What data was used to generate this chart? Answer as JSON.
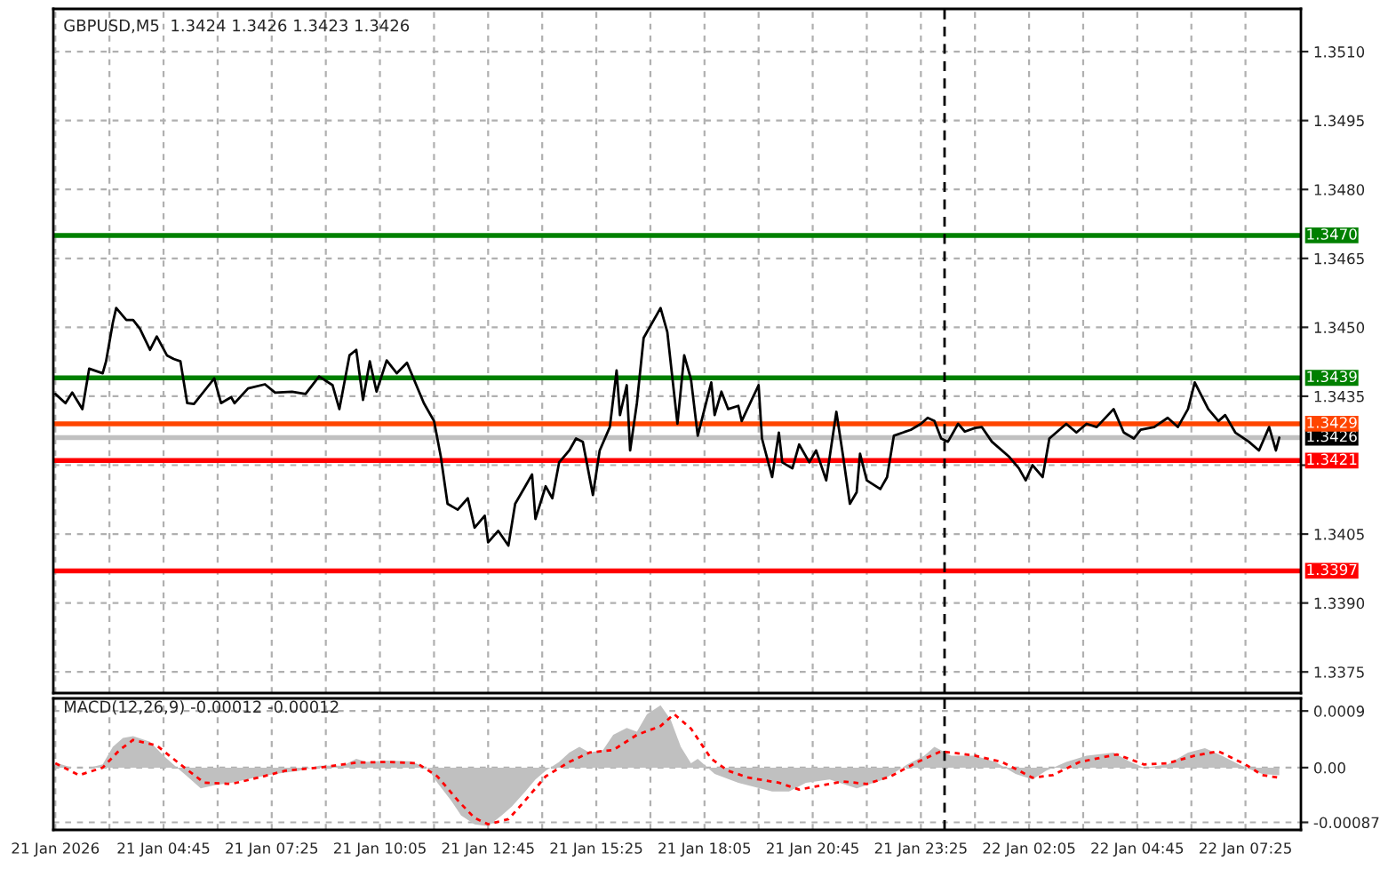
{
  "chart_data": [
    {
      "type": "line",
      "title": "GBPUSD,M5  1.3424 1.3426 1.3423 1.3426",
      "grid": true,
      "tick_labels": "y",
      "xlim": [
        "2026-01-21T02:02",
        "2026-01-22T08:47"
      ],
      "ylim": [
        1.33704,
        1.35193
      ],
      "xticks": [
        {
          "value": "2026-01-21T02:05",
          "label": null
        },
        {
          "value": "2026-01-21T03:25",
          "label": null
        },
        {
          "value": "2026-01-21T04:45",
          "label": null
        },
        {
          "value": "2026-01-21T06:05",
          "label": null
        },
        {
          "value": "2026-01-21T07:25",
          "label": null
        },
        {
          "value": "2026-01-21T08:45",
          "label": null
        },
        {
          "value": "2026-01-21T10:05",
          "label": null
        },
        {
          "value": "2026-01-21T11:25",
          "label": null
        },
        {
          "value": "2026-01-21T12:45",
          "label": null
        },
        {
          "value": "2026-01-21T14:05",
          "label": null
        },
        {
          "value": "2026-01-21T15:25",
          "label": null
        },
        {
          "value": "2026-01-21T16:45",
          "label": null
        },
        {
          "value": "2026-01-21T18:05",
          "label": null
        },
        {
          "value": "2026-01-21T19:25",
          "label": null
        },
        {
          "value": "2026-01-21T20:45",
          "label": null
        },
        {
          "value": "2026-01-21T22:05",
          "label": null
        },
        {
          "value": "2026-01-21T23:25",
          "label": null
        },
        {
          "value": "2026-01-22T00:45",
          "label": null
        },
        {
          "value": "2026-01-22T02:05",
          "label": null
        },
        {
          "value": "2026-01-22T03:25",
          "label": null
        },
        {
          "value": "2026-01-22T04:45",
          "label": null
        },
        {
          "value": "2026-01-22T06:05",
          "label": null
        },
        {
          "value": "2026-01-22T07:25",
          "label": null
        }
      ],
      "yticks": [
        {
          "value": 1.3375,
          "label": "1.3375"
        },
        {
          "value": 1.339,
          "label": "1.3390"
        },
        {
          "value": 1.3405,
          "label": "1.3405"
        },
        {
          "value": 1.342,
          "label": null
        },
        {
          "value": 1.3435,
          "label": "1.3435"
        },
        {
          "value": 1.345,
          "label": "1.3450"
        },
        {
          "value": 1.3465,
          "label": "1.3465"
        },
        {
          "value": 1.348,
          "label": "1.3480"
        },
        {
          "value": 1.3495,
          "label": "1.3495"
        },
        {
          "value": 1.351,
          "label": "1.3510"
        }
      ],
      "ref_lines": [
        {
          "axis": "y",
          "value": 1.347,
          "label": "1.3470",
          "color": "#008000",
          "line_style": "solid"
        },
        {
          "axis": "y",
          "value": 1.3439,
          "label": "1.3439",
          "color": "#008000",
          "line_style": "solid"
        },
        {
          "axis": "y",
          "value": 1.3429,
          "label": "1.3429",
          "color": "#ff4500",
          "line_style": "solid"
        },
        {
          "axis": "y",
          "value": 1.3426,
          "label": "1.3426",
          "color": "#c0c0c0",
          "line_style": "solid"
        },
        {
          "axis": "y",
          "value": 1.3421,
          "label": "1.3421",
          "color": "#ff0000",
          "line_style": "solid"
        },
        {
          "axis": "y",
          "value": 1.3397,
          "label": "1.3397",
          "color": "#ff0000",
          "line_style": "solid"
        },
        {
          "axis": "x",
          "value": "2026-01-22T00:00",
          "color": "#000000",
          "line_style": "dashed"
        }
      ],
      "series": [
        {
          "color": "#000000",
          "line_style": "solid",
          "x": [
            "2026-01-21T02:05",
            "2026-01-21T02:20",
            "2026-01-21T02:30",
            "2026-01-21T02:45",
            "2026-01-21T02:55",
            "2026-01-21T03:15",
            "2026-01-21T03:20",
            "2026-01-21T03:30",
            "2026-01-21T03:35",
            "2026-01-21T03:50",
            "2026-01-21T04:00",
            "2026-01-21T04:10",
            "2026-01-21T04:25",
            "2026-01-21T04:35",
            "2026-01-21T04:50",
            "2026-01-21T05:00",
            "2026-01-21T05:10",
            "2026-01-21T05:20",
            "2026-01-21T05:30",
            "2026-01-21T05:45",
            "2026-01-21T06:00",
            "2026-01-21T06:10",
            "2026-01-21T06:25",
            "2026-01-21T06:30",
            "2026-01-21T06:50",
            "2026-01-21T07:15",
            "2026-01-21T07:30",
            "2026-01-21T07:55",
            "2026-01-21T08:15",
            "2026-01-21T08:35",
            "2026-01-21T08:55",
            "2026-01-21T09:05",
            "2026-01-21T09:20",
            "2026-01-21T09:30",
            "2026-01-21T09:40",
            "2026-01-21T09:50",
            "2026-01-21T10:00",
            "2026-01-21T10:15",
            "2026-01-21T10:30",
            "2026-01-21T10:45",
            "2026-01-21T11:10",
            "2026-01-21T11:25",
            "2026-01-21T11:35",
            "2026-01-21T11:45",
            "2026-01-21T12:00",
            "2026-01-21T12:15",
            "2026-01-21T12:25",
            "2026-01-21T12:40",
            "2026-01-21T12:45",
            "2026-01-21T13:00",
            "2026-01-21T13:15",
            "2026-01-21T13:25",
            "2026-01-21T13:40",
            "2026-01-21T13:50",
            "2026-01-21T13:55",
            "2026-01-21T14:10",
            "2026-01-21T14:20",
            "2026-01-21T14:30",
            "2026-01-21T14:45",
            "2026-01-21T14:55",
            "2026-01-21T15:05",
            "2026-01-21T15:20",
            "2026-01-21T15:30",
            "2026-01-21T15:45",
            "2026-01-21T15:55",
            "2026-01-21T16:00",
            "2026-01-21T16:10",
            "2026-01-21T16:15",
            "2026-01-21T16:25",
            "2026-01-21T16:35",
            "2026-01-21T16:50",
            "2026-01-21T17:00",
            "2026-01-21T17:10",
            "2026-01-21T17:25",
            "2026-01-21T17:35",
            "2026-01-21T17:45",
            "2026-01-21T17:55",
            "2026-01-21T18:15",
            "2026-01-21T18:20",
            "2026-01-21T18:30",
            "2026-01-21T18:40",
            "2026-01-21T18:55",
            "2026-01-21T19:00",
            "2026-01-21T19:25",
            "2026-01-21T19:30",
            "2026-01-21T19:45",
            "2026-01-21T19:55",
            "2026-01-21T20:00",
            "2026-01-21T20:15",
            "2026-01-21T20:25",
            "2026-01-21T20:40",
            "2026-01-21T20:50",
            "2026-01-21T21:05",
            "2026-01-21T21:20",
            "2026-01-21T21:30",
            "2026-01-21T21:40",
            "2026-01-21T21:50",
            "2026-01-21T21:55",
            "2026-01-21T22:05",
            "2026-01-21T22:25",
            "2026-01-21T22:35",
            "2026-01-21T22:45",
            "2026-01-21T23:10",
            "2026-01-21T23:25",
            "2026-01-21T23:35",
            "2026-01-21T23:45",
            "2026-01-21T23:55",
            "2026-01-22T00:05",
            "2026-01-22T00:20",
            "2026-01-22T00:30",
            "2026-01-22T00:45",
            "2026-01-22T00:55",
            "2026-01-22T01:10",
            "2026-01-22T01:35",
            "2026-01-22T01:50",
            "2026-01-22T02:00",
            "2026-01-22T02:10",
            "2026-01-22T02:25",
            "2026-01-22T02:35",
            "2026-01-22T03:00",
            "2026-01-22T03:15",
            "2026-01-22T03:30",
            "2026-01-22T03:45",
            "2026-01-22T04:10",
            "2026-01-22T04:25",
            "2026-01-22T04:40",
            "2026-01-22T04:50",
            "2026-01-22T05:10",
            "2026-01-22T05:30",
            "2026-01-22T05:45",
            "2026-01-22T06:00",
            "2026-01-22T06:10",
            "2026-01-22T06:30",
            "2026-01-22T06:45",
            "2026-01-22T06:55",
            "2026-01-22T07:10",
            "2026-01-22T07:30",
            "2026-01-22T07:45",
            "2026-01-22T08:00",
            "2026-01-22T08:10",
            "2026-01-22T08:15"
          ],
          "values": [
            1.34355,
            1.34335,
            1.34358,
            1.34322,
            1.3441,
            1.344,
            1.34426,
            1.3451,
            1.34542,
            1.34516,
            1.34516,
            1.34497,
            1.34451,
            1.3448,
            1.34439,
            1.34431,
            1.34426,
            1.34335,
            1.34333,
            1.34361,
            1.34389,
            1.34335,
            1.34348,
            1.34335,
            1.34367,
            1.34376,
            1.34358,
            1.3436,
            1.34355,
            1.34393,
            1.34374,
            1.34322,
            1.34439,
            1.34451,
            1.34342,
            1.34426,
            1.3436,
            1.34428,
            1.344,
            1.34423,
            1.34335,
            1.34296,
            1.34219,
            1.34116,
            1.34103,
            1.34128,
            1.34064,
            1.3409,
            1.34032,
            1.34057,
            1.34025,
            1.34116,
            1.34154,
            1.3418,
            1.34083,
            1.34154,
            1.34128,
            1.34206,
            1.34232,
            1.34258,
            1.34251,
            1.34135,
            1.34232,
            1.34283,
            1.34406,
            1.34309,
            1.34374,
            1.34232,
            1.34335,
            1.34477,
            1.34516,
            1.34542,
            1.3449,
            1.3429,
            1.34439,
            1.34387,
            1.34264,
            1.3438,
            1.34309,
            1.3436,
            1.34322,
            1.34329,
            1.34296,
            1.34374,
            1.34258,
            1.34174,
            1.34271,
            1.34206,
            1.34193,
            1.34245,
            1.34206,
            1.34232,
            1.34167,
            1.34316,
            1.34219,
            1.34116,
            1.34141,
            1.34225,
            1.34167,
            1.34148,
            1.34174,
            1.34264,
            1.34277,
            1.3429,
            1.34303,
            1.34296,
            1.34258,
            1.34251,
            1.3429,
            1.34273,
            1.34281,
            1.34283,
            1.34251,
            1.34219,
            1.34193,
            1.34167,
            1.342,
            1.34174,
            1.34258,
            1.3429,
            1.34271,
            1.3429,
            1.34283,
            1.34322,
            1.34271,
            1.34258,
            1.34277,
            1.34283,
            1.34303,
            1.34283,
            1.34322,
            1.3438,
            1.34322,
            1.34296,
            1.34309,
            1.34271,
            1.34251,
            1.34232,
            1.34283,
            1.34232,
            1.3426
          ]
        }
      ]
    },
    {
      "type": "area",
      "title": "MACD(12,26,9) -0.00012 -0.00012",
      "grid": true,
      "xlim": [
        "2026-01-21T02:02",
        "2026-01-22T08:47"
      ],
      "ylim": [
        -0.00099,
        0.0011
      ],
      "xticks": [
        {
          "value": "2026-01-21T02:05",
          "label": "21 Jan 2026"
        },
        {
          "value": "2026-01-21T03:25",
          "label": null
        },
        {
          "value": "2026-01-21T04:45",
          "label": "21 Jan 04:45"
        },
        {
          "value": "2026-01-21T06:05",
          "label": null
        },
        {
          "value": "2026-01-21T07:25",
          "label": "21 Jan 07:25"
        },
        {
          "value": "2026-01-21T08:45",
          "label": null
        },
        {
          "value": "2026-01-21T10:05",
          "label": "21 Jan 10:05"
        },
        {
          "value": "2026-01-21T11:25",
          "label": null
        },
        {
          "value": "2026-01-21T12:45",
          "label": "21 Jan 12:45"
        },
        {
          "value": "2026-01-21T14:05",
          "label": null
        },
        {
          "value": "2026-01-21T15:25",
          "label": "21 Jan 15:25"
        },
        {
          "value": "2026-01-21T16:45",
          "label": null
        },
        {
          "value": "2026-01-21T18:05",
          "label": "21 Jan 18:05"
        },
        {
          "value": "2026-01-21T19:25",
          "label": null
        },
        {
          "value": "2026-01-21T20:45",
          "label": "21 Jan 20:45"
        },
        {
          "value": "2026-01-21T22:05",
          "label": null
        },
        {
          "value": "2026-01-21T23:25",
          "label": "21 Jan 23:25"
        },
        {
          "value": "2026-01-22T00:45",
          "label": null
        },
        {
          "value": "2026-01-22T02:05",
          "label": "22 Jan 02:05"
        },
        {
          "value": "2026-01-22T03:25",
          "label": null
        },
        {
          "value": "2026-01-22T04:45",
          "label": "22 Jan 04:45"
        },
        {
          "value": "2026-01-22T06:05",
          "label": null
        },
        {
          "value": "2026-01-22T07:25",
          "label": "22 Jan 07:25"
        }
      ],
      "yticks": [
        {
          "value": -0.00087,
          "label": "-0.00087"
        },
        {
          "value": 0,
          "label": "0.00"
        },
        {
          "value": 0.0009,
          "label": "0.0009"
        }
      ],
      "ref_lines": [
        {
          "axis": "x",
          "value": "2026-01-22T00:00",
          "color": "#000000",
          "line_style": "dashed"
        }
      ],
      "series": [
        {
          "color": "#c0c0c0",
          "x": [
            "2026-01-21T02:05",
            "2026-01-21T02:30",
            "2026-01-21T02:55",
            "2026-01-21T03:15",
            "2026-01-21T03:30",
            "2026-01-21T03:45",
            "2026-01-21T04:00",
            "2026-01-21T04:25",
            "2026-01-21T04:45",
            "2026-01-21T05:05",
            "2026-01-21T05:20",
            "2026-01-21T05:40",
            "2026-01-21T06:00",
            "2026-01-21T06:25",
            "2026-01-21T07:00",
            "2026-01-21T07:30",
            "2026-01-21T08:05",
            "2026-01-21T08:35",
            "2026-01-21T09:10",
            "2026-01-21T09:30",
            "2026-01-21T09:45",
            "2026-01-21T10:15",
            "2026-01-21T10:50",
            "2026-01-21T11:15",
            "2026-01-21T11:30",
            "2026-01-21T11:50",
            "2026-01-21T12:05",
            "2026-01-21T12:25",
            "2026-01-21T12:45",
            "2026-01-21T13:05",
            "2026-01-21T13:20",
            "2026-01-21T13:40",
            "2026-01-21T13:55",
            "2026-01-21T14:10",
            "2026-01-21T14:30",
            "2026-01-21T14:45",
            "2026-01-21T15:00",
            "2026-01-21T15:15",
            "2026-01-21T15:35",
            "2026-01-21T15:50",
            "2026-01-21T16:10",
            "2026-01-21T16:25",
            "2026-01-21T16:40",
            "2026-01-21T17:00",
            "2026-01-21T17:15",
            "2026-01-21T17:30",
            "2026-01-21T17:45",
            "2026-01-21T17:55",
            "2026-01-21T18:20",
            "2026-01-21T18:55",
            "2026-01-21T19:45",
            "2026-01-21T20:10",
            "2026-01-21T20:35",
            "2026-01-21T21:10",
            "2026-01-21T21:50",
            "2026-01-21T22:30",
            "2026-01-21T23:05",
            "2026-01-21T23:30",
            "2026-01-21T23:45",
            "2026-01-22T00:10",
            "2026-01-22T00:45",
            "2026-01-22T01:15",
            "2026-01-22T01:45",
            "2026-01-22T02:10",
            "2026-01-22T02:30",
            "2026-01-22T03:00",
            "2026-01-22T03:30",
            "2026-01-22T04:10",
            "2026-01-22T04:35",
            "2026-01-22T04:55",
            "2026-01-22T05:30",
            "2026-01-22T06:00",
            "2026-01-22T06:25",
            "2026-01-22T06:50",
            "2026-01-22T07:25",
            "2026-01-22T07:50",
            "2026-01-22T08:15"
          ],
          "values": [
            8e-05,
            0,
            0,
            5e-05,
            0.00033,
            0.00047,
            0.0005,
            0.00041,
            0.00019,
            0,
            -0.00014,
            -0.00033,
            -0.00028,
            -0.00024,
            -0.00016,
            -0.0001,
            -5e-05,
            3e-05,
            3e-05,
            0.00014,
            9e-05,
            0.00011,
            0.0001,
            0,
            -0.00024,
            -0.00052,
            -0.00076,
            -0.0009,
            -0.00093,
            -0.00076,
            -0.00062,
            -0.00038,
            -0.00019,
            -5e-05,
            9e-05,
            0.00024,
            0.00033,
            0.00024,
            0.00028,
            0.00052,
            0.00063,
            0.00057,
            0.00085,
            0.00099,
            0.00076,
            0.00033,
            7e-05,
            0.00014,
            -0.0001,
            -0.00024,
            -0.00038,
            -0.00038,
            -0.00024,
            -0.00019,
            -0.00033,
            -0.00019,
            5e-05,
            0.00019,
            0.00033,
            0.00019,
            0.00019,
            9e-05,
            -0.0001,
            -0.00019,
            -5e-05,
            9e-05,
            0.00019,
            0.00024,
            9e-05,
            0,
            5e-05,
            0.00024,
            0.00031,
            0.00019,
            0,
            -0.0001,
            -0.00012
          ]
        },
        {
          "type": "line",
          "color": "#ff0000",
          "line_style": "dotted",
          "x": [
            "2026-01-21T02:05",
            "2026-01-21T02:40",
            "2026-01-21T03:15",
            "2026-01-21T03:40",
            "2026-01-21T04:00",
            "2026-01-21T04:35",
            "2026-01-21T05:10",
            "2026-01-21T05:45",
            "2026-01-21T06:25",
            "2026-01-21T07:05",
            "2026-01-21T07:45",
            "2026-01-21T08:35",
            "2026-01-21T09:30",
            "2026-01-21T10:15",
            "2026-01-21T11:00",
            "2026-01-21T11:30",
            "2026-01-21T12:00",
            "2026-01-21T12:25",
            "2026-01-21T12:45",
            "2026-01-21T13:15",
            "2026-01-21T13:40",
            "2026-01-21T14:10",
            "2026-01-21T14:45",
            "2026-01-21T15:15",
            "2026-01-21T15:50",
            "2026-01-21T16:25",
            "2026-01-21T17:00",
            "2026-01-21T17:20",
            "2026-01-21T17:45",
            "2026-01-21T18:15",
            "2026-01-21T18:40",
            "2026-01-21T19:10",
            "2026-01-21T19:55",
            "2026-01-21T20:25",
            "2026-01-21T21:00",
            "2026-01-21T21:30",
            "2026-01-21T22:05",
            "2026-01-21T22:40",
            "2026-01-21T23:20",
            "2026-01-21T23:55",
            "2026-01-22T00:45",
            "2026-01-22T01:25",
            "2026-01-22T02:10",
            "2026-01-22T02:40",
            "2026-01-22T03:20",
            "2026-01-22T04:15",
            "2026-01-22T04:55",
            "2026-01-22T05:30",
            "2026-01-22T06:10",
            "2026-01-22T06:45",
            "2026-01-22T07:25",
            "2026-01-22T07:50",
            "2026-01-22T08:15"
          ],
          "values": [
            7e-05,
            -0.00012,
            0,
            0.00028,
            0.00044,
            0.00035,
            5e-05,
            -0.00024,
            -0.00026,
            -0.00016,
            -5e-05,
            0,
            8e-05,
            9e-05,
            7e-05,
            -0.00014,
            -0.00052,
            -0.0008,
            -0.0009,
            -0.00082,
            -0.00052,
            -0.00014,
            9e-05,
            0.00024,
            0.00028,
            0.00052,
            0.00066,
            0.00085,
            0.00062,
            0.00014,
            -5e-05,
            -0.00016,
            -0.00024,
            -0.00035,
            -0.00028,
            -0.00022,
            -0.00026,
            -0.00014,
            9e-05,
            0.00026,
            0.00019,
            9e-05,
            -0.00016,
            -0.00012,
            9e-05,
            0.00021,
            5e-05,
            7e-05,
            0.00019,
            0.00026,
            5e-05,
            -0.00012,
            -0.00016
          ]
        }
      ]
    }
  ]
}
